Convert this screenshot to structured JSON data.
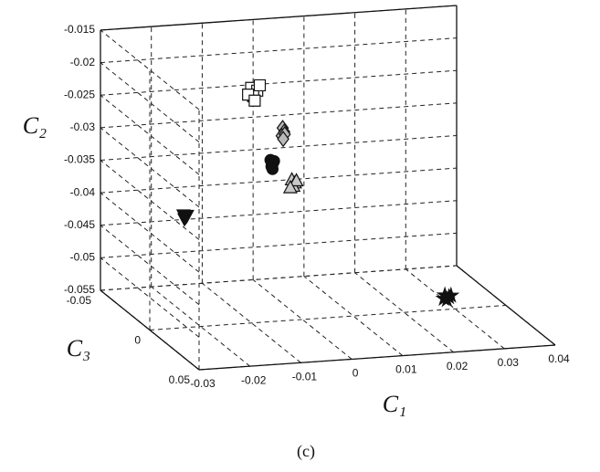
{
  "chart_data": {
    "type": "scatter3d",
    "xlabel": "C₁",
    "ylabel": "C₂",
    "zlabel": "C₃",
    "caption": "(c)",
    "xlim": [
      -0.03,
      0.04
    ],
    "xticks": [
      -0.03,
      -0.02,
      -0.01,
      0,
      0.01,
      0.02,
      0.03,
      0.04
    ],
    "ylim": [
      -0.055,
      -0.015
    ],
    "yticks": [
      -0.055,
      -0.05,
      -0.045,
      -0.04,
      -0.035,
      -0.03,
      -0.025,
      -0.02,
      -0.015
    ],
    "zlim": [
      0.05,
      -0.05
    ],
    "zticks": [
      -0.05,
      0,
      0.05
    ],
    "grid": true,
    "series": [
      {
        "marker": "square",
        "color": "#ffffff",
        "x": [
          -0.0062,
          -0.005,
          -0.0058,
          -0.0045,
          -0.0068,
          -0.0055
        ],
        "y": [
          -0.0215,
          -0.022,
          -0.0228,
          -0.0212,
          -0.0225,
          -0.0235
        ],
        "z": [
          -0.02,
          -0.02,
          -0.02,
          -0.02,
          -0.02,
          -0.02
        ]
      },
      {
        "marker": "diamond",
        "color": "#b8b8b8",
        "x": [
          0.0,
          0.0003,
          -0.0002,
          0.0004,
          0.0001
        ],
        "y": [
          -0.028,
          -0.0286,
          -0.0292,
          -0.029,
          -0.0297
        ],
        "z": [
          -0.02,
          -0.02,
          -0.02,
          -0.02,
          -0.02
        ]
      },
      {
        "marker": "circle",
        "color": "#111111",
        "x": [
          -0.0024,
          -0.0019,
          -0.0022,
          -0.0017,
          -0.002
        ],
        "y": [
          -0.0328,
          -0.0333,
          -0.0338,
          -0.033,
          -0.0342
        ],
        "z": [
          -0.02,
          -0.02,
          -0.02,
          -0.02,
          -0.02
        ]
      },
      {
        "marker": "triangle",
        "color": "#c8c8c8",
        "x": [
          0.0018,
          0.0024,
          0.0021,
          0.0027,
          0.0015
        ],
        "y": [
          -0.036,
          -0.0365,
          -0.037,
          -0.0362,
          -0.0372
        ],
        "z": [
          -0.02,
          -0.02,
          -0.02,
          -0.02,
          -0.02
        ]
      },
      {
        "marker": "triangle-down",
        "color": "#111111",
        "x": [
          -0.0195,
          -0.019,
          -0.0193,
          -0.0188
        ],
        "y": [
          -0.0404,
          -0.0407,
          -0.041,
          -0.0405
        ],
        "z": [
          -0.02,
          -0.02,
          -0.02,
          -0.02
        ]
      },
      {
        "marker": "star",
        "color": "#111111",
        "x": [
          0.028,
          0.0288,
          0.0284,
          0.0292,
          0.0278
        ],
        "y": [
          -0.0528,
          -0.0531,
          -0.0535,
          -0.0529,
          -0.0533
        ],
        "z": [
          0,
          0,
          0,
          0,
          0
        ]
      }
    ]
  }
}
